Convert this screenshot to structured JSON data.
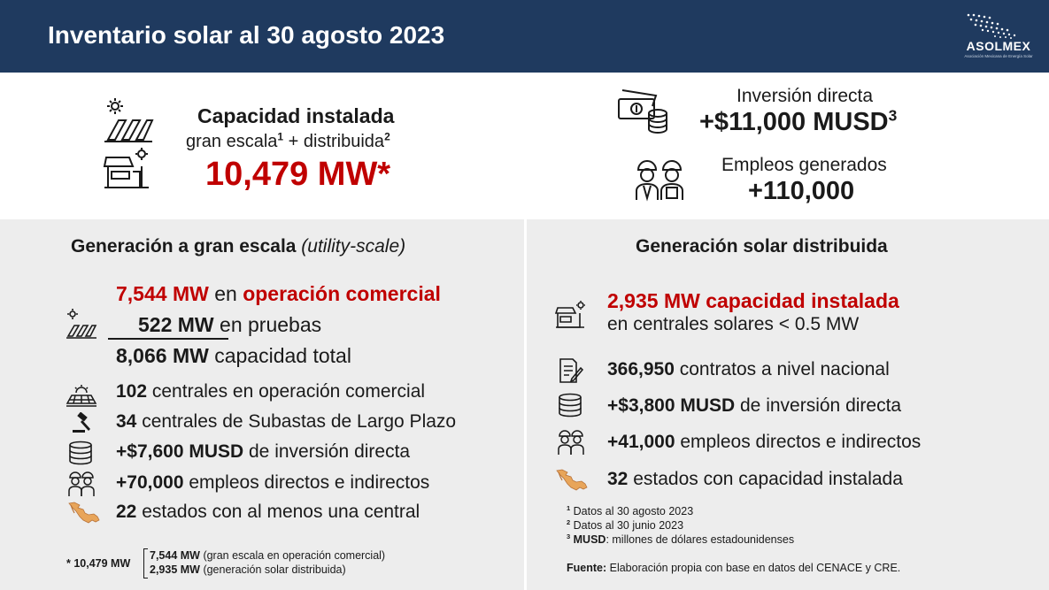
{
  "header": {
    "title": "Inventario solar al 30 agosto 2023",
    "logo_name": "ASOLMEX",
    "logo_subtitle": "Asociación Mexicana de Energía Solar"
  },
  "capacity": {
    "title": "Capacidad instalada",
    "sub_a": "gran escala",
    "sup_a": "1",
    "sub_b": " + distribuida",
    "sup_b": "2",
    "value": "10,479 MW*"
  },
  "investment": {
    "label": "Inversión directa",
    "value": "+$11,000 MUSD",
    "sup": "3"
  },
  "employment": {
    "label": "Empleos generados",
    "value": "+110,000"
  },
  "utility": {
    "title": "Generación a gran escala ",
    "title_italic": "(utility-scale)",
    "operation_value": "7,544 MW",
    "operation_mid": " en ",
    "operation_label": "operación comercial",
    "testing_value": "522 MW",
    "testing_label": " en pruebas",
    "total_value": "8,066 MW",
    "total_label": " capacidad total",
    "items": [
      {
        "value": "102",
        "label": " centrales en operación comercial"
      },
      {
        "value": "34",
        "label": " centrales de Subastas de Largo Plazo"
      },
      {
        "value": "+$7,600 MUSD",
        "label": " de inversión directa"
      },
      {
        "value": "+70,000",
        "label": " empleos directos e indirectos"
      },
      {
        "value": "22",
        "label": " estados con al menos una central"
      }
    ],
    "footnote": {
      "total": "* 10,479 MW",
      "line1_value": "7,544 MW",
      "line1_label": " (gran escala en operación comercial)",
      "line2_value": "2,935 MW",
      "line2_label": " (generación solar distribuida)"
    }
  },
  "distributed": {
    "title": "Generación solar distribuida",
    "capacity_value": "2,935 MW capacidad instalada",
    "capacity_sub": "en centrales solares < 0.5 MW",
    "items": [
      {
        "value": "366,950",
        "label": " contratos a nivel nacional"
      },
      {
        "value": "+$3,800 MUSD",
        "label": " de inversión directa"
      },
      {
        "value": "+41,000",
        "label": " empleos directos e indirectos"
      },
      {
        "value": "32",
        "label": " estados con capacidad instalada"
      }
    ],
    "notes": [
      {
        "mark": "1",
        "text": " Datos al 30 agosto 2023"
      },
      {
        "mark": "2",
        "text": " Datos al 30 junio 2023"
      },
      {
        "mark": "3",
        "bold": " MUSD",
        "text": ": millones de dólares estadounidenses"
      }
    ],
    "source_label": "Fuente:",
    "source_text": " Elaboración propia con base en datos del CENACE y CRE."
  },
  "icons": {
    "solar_panels": "solar-panels-icon",
    "solar_store": "solar-store-icon",
    "money": "money-icon",
    "workers": "workers-icon",
    "solar_farm": "solar-farm-icon",
    "solar_plant": "solar-plant-icon",
    "gavel": "gavel-icon",
    "coins": "coins-icon",
    "mexico_map": "mexico-map-icon",
    "contract": "contract-icon"
  },
  "colors": {
    "header_bg": "#1f3a5f",
    "accent_red": "#c00000",
    "panel_bg": "#ededed"
  }
}
